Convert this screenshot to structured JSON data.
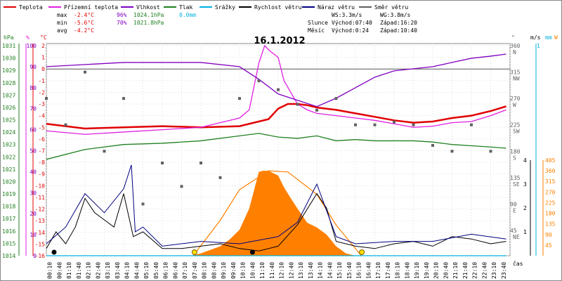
{
  "header": {
    "legend": [
      {
        "label": "Teplota",
        "color": "#e00000"
      },
      {
        "label": "Přízemní teplota",
        "color": "#e020e0"
      },
      {
        "label": "Vlhkost",
        "color": "#8000c0"
      },
      {
        "label": "Tlak",
        "color": "#208020"
      },
      {
        "label": "Srážky",
        "color": "#00b0e0"
      },
      {
        "label": "Rychlost větru",
        "color": "#000000"
      },
      {
        "label": "Náraz větru",
        "color": "#000080"
      },
      {
        "label": "Směr větru",
        "color": "#606060"
      }
    ],
    "stats": {
      "max_label": "max",
      "max_temp": "-2.4°C",
      "max_hum": "96%",
      "max_press": "1024.1hPa",
      "rain": "0.0mm",
      "min_label": "min",
      "min_temp": "-5.6°C",
      "min_hum": "70%",
      "min_press": "1021.8hPa",
      "avg_label": "avg",
      "avg_temp": "-4.2°C"
    },
    "wind": {
      "ws": "WS:3.3m/s",
      "wg": "WG:3.8m/s"
    },
    "sun": {
      "label": "Slunce",
      "rise": "Východ:07:40",
      "set": "Západ:16:20"
    },
    "moon": {
      "label": "Měsíc",
      "rise": "Východ:0:24",
      "set": "Západ:10:40"
    }
  },
  "chart_data": {
    "type": "line",
    "title": "16.1.2012",
    "x_axis_label": "čas",
    "x_ticks": [
      "00:10",
      "00:40",
      "01:10",
      "01:40",
      "02:10",
      "02:40",
      "03:10",
      "03:40",
      "04:10",
      "04:40",
      "05:10",
      "05:40",
      "06:10",
      "06:40",
      "07:10",
      "07:40",
      "08:10",
      "08:40",
      "09:10",
      "09:40",
      "10:10",
      "10:40",
      "11:10",
      "11:40",
      "12:10",
      "12:40",
      "13:10",
      "13:40",
      "14:10",
      "14:40",
      "15:10",
      "15:40",
      "16:10",
      "16:40",
      "17:10",
      "17:40",
      "18:10",
      "18:40",
      "19:10",
      "19:40",
      "20:10",
      "20:40",
      "21:10",
      "21:40",
      "22:10",
      "22:40",
      "23:10",
      "23:40"
    ],
    "axes": {
      "hpa": {
        "label": "hPa",
        "ticks": [
          "1031",
          "1030",
          "1029",
          "1028",
          "1027",
          "1026",
          "1025",
          "1024",
          "1023",
          "1022",
          "1021",
          "1020",
          "1019",
          "1018",
          "1017",
          "1016",
          "1015",
          "1014"
        ]
      },
      "humidity": {
        "label": "%",
        "ticks": [
          "100",
          "90",
          "80",
          "70",
          "60",
          "50",
          "40",
          "30",
          "20",
          "10",
          "0"
        ]
      },
      "temp": {
        "label": "°C",
        "ticks": [
          "2",
          "1",
          "0",
          "-1",
          "-2",
          "-3",
          "-4",
          "-5",
          "-6",
          "-7",
          "-8",
          "-9",
          "-10",
          "-11",
          "-12",
          "-13",
          "-14",
          "-15",
          "-16"
        ]
      },
      "direction": {
        "label": "°",
        "ticks": [
          "360",
          "315",
          "270",
          "225",
          "180",
          "135",
          "90",
          "45"
        ],
        "compass": [
          "N",
          "NW",
          "W",
          "SW",
          "S",
          "SE",
          "E",
          "NE"
        ]
      },
      "wind": {
        "label": "m/s",
        "ticks": [
          "4",
          "3",
          "2",
          "1"
        ]
      },
      "rain": {
        "label": "mm",
        "ticks": [
          "1"
        ]
      },
      "radiation": {
        "label": "W",
        "ticks": [
          "405",
          "360",
          "315",
          "270",
          "225",
          "180",
          "135",
          "90",
          "45"
        ]
      }
    },
    "series": [
      {
        "name": "Teplota",
        "unit": "°C",
        "color": "#e00000",
        "x": [
          0,
          2,
          4,
          6,
          8,
          10,
          11.5,
          12,
          12.5,
          13,
          13.5,
          14,
          14.5,
          15,
          16,
          17,
          18,
          19,
          20,
          21,
          22,
          23,
          23.8
        ],
        "y": [
          -4.7,
          -5.1,
          -5.0,
          -4.9,
          -5.0,
          -4.9,
          -4.3,
          -3.4,
          -3.0,
          -3.0,
          -3.1,
          -3.3,
          -3.4,
          -3.5,
          -3.8,
          -4.1,
          -4.4,
          -4.6,
          -4.5,
          -4.2,
          -4.0,
          -3.6,
          -3.2
        ]
      },
      {
        "name": "Přízemní teplota",
        "unit": "°C",
        "color": "#e020e0",
        "x": [
          0,
          2,
          4,
          6,
          8,
          10,
          10.5,
          11,
          11.3,
          11.6,
          12,
          12.3,
          13,
          13.5,
          14,
          15,
          16,
          17,
          18,
          19,
          20,
          21,
          22,
          23,
          23.8
        ],
        "y": [
          -5.3,
          -5.6,
          -5.4,
          -5.2,
          -5.0,
          -4.2,
          -3.5,
          0.5,
          2.0,
          1.5,
          1.0,
          -1.0,
          -3.0,
          -3.5,
          -3.8,
          -4.0,
          -4.2,
          -4.4,
          -4.7,
          -5.0,
          -4.9,
          -4.6,
          -4.5,
          -4.0,
          -3.5
        ]
      },
      {
        "name": "Vlhkost",
        "unit": "%",
        "color": "#8000c0",
        "x": [
          0,
          2,
          4,
          6,
          8,
          10,
          11,
          12,
          13,
          14,
          15,
          16,
          17,
          18,
          19,
          20,
          21,
          22,
          23,
          23.8
        ],
        "y": [
          90,
          91,
          92,
          92,
          92,
          90,
          84,
          77,
          74,
          71,
          75,
          80,
          85,
          88,
          89,
          90,
          92,
          94,
          95,
          96
        ]
      },
      {
        "name": "Tlak",
        "unit": "hPa",
        "color": "#208020",
        "x": [
          0,
          2,
          4,
          6,
          8,
          10,
          11,
          12,
          13,
          14,
          15,
          16,
          17,
          18,
          19,
          20,
          21,
          22,
          23,
          23.8
        ],
        "y": [
          1021.8,
          1022.6,
          1023.0,
          1023.1,
          1023.3,
          1023.7,
          1023.9,
          1023.6,
          1023.5,
          1023.7,
          1023.3,
          1023.4,
          1023.3,
          1023.3,
          1023.3,
          1023.2,
          1023.0,
          1022.9,
          1022.8,
          1022.7
        ]
      },
      {
        "name": "Rychlost větru",
        "unit": "m/s",
        "color": "#000000",
        "x": [
          0,
          0.5,
          1,
          1.5,
          2,
          2.5,
          3,
          3.5,
          4,
          4.5,
          5,
          6,
          7,
          8,
          9,
          10,
          11,
          12,
          13,
          14,
          14.5,
          15,
          16,
          17,
          18,
          19,
          20,
          21,
          22,
          23,
          23.8
        ],
        "y": [
          0.3,
          1.0,
          0.5,
          1.2,
          2.4,
          1.8,
          1.5,
          1.2,
          2.6,
          0.8,
          1.0,
          0.3,
          0.3,
          0.4,
          0.5,
          0.3,
          0.2,
          0.4,
          1.3,
          2.6,
          2.0,
          0.6,
          0.4,
          0.3,
          0.5,
          0.6,
          0.4,
          0.8,
          0.7,
          0.5,
          0.6
        ]
      },
      {
        "name": "Náraz větru",
        "unit": "m/s",
        "color": "#000080",
        "x": [
          0,
          1,
          2,
          3,
          4,
          4.4,
          4.6,
          5,
          6,
          8,
          10,
          12,
          13,
          14,
          15,
          16,
          18,
          20,
          22,
          23.8
        ],
        "y": [
          0.5,
          1.2,
          2.6,
          1.8,
          2.8,
          3.8,
          1.0,
          1.2,
          0.4,
          0.6,
          0.5,
          0.8,
          1.4,
          3.0,
          0.8,
          0.5,
          0.6,
          0.6,
          0.9,
          0.7
        ]
      },
      {
        "name": "Směr větru",
        "unit": "°",
        "color": "#606060",
        "x": [
          0,
          1,
          2,
          3,
          4,
          5,
          6,
          7,
          8,
          9,
          10,
          11,
          12,
          13,
          14,
          15,
          16,
          17,
          18,
          19,
          20,
          21,
          22,
          23
        ],
        "y": [
          270,
          225,
          315,
          180,
          270,
          90,
          160,
          120,
          160,
          135,
          270,
          300,
          285,
          260,
          250,
          270,
          225,
          225,
          230,
          225,
          190,
          180,
          225,
          180
        ]
      },
      {
        "name": "Srážky",
        "unit": "mm",
        "color": "#00b0e0",
        "x": [
          0,
          23.8
        ],
        "y": [
          0.0,
          0.0
        ]
      }
    ],
    "radiation": {
      "unit": "W",
      "color": "#ff8000",
      "x": [
        7.5,
        8,
        8.5,
        9,
        9.5,
        10,
        10.5,
        11,
        11.2,
        11.5,
        12,
        12.3,
        12.6,
        13,
        13.5,
        14,
        14.5,
        15,
        15.5,
        16
      ],
      "y": [
        0,
        10,
        25,
        40,
        70,
        110,
        200,
        355,
        360,
        360,
        340,
        290,
        250,
        200,
        140,
        120,
        90,
        40,
        10,
        0
      ],
      "theoretical_max": [
        {
          "x": 7.6,
          "y": 0
        },
        {
          "x": 9,
          "y": 150
        },
        {
          "x": 10,
          "y": 280
        },
        {
          "x": 11.5,
          "y": 360
        },
        {
          "x": 12.5,
          "y": 355
        },
        {
          "x": 14,
          "y": 260
        },
        {
          "x": 15,
          "y": 130
        },
        {
          "x": 16.3,
          "y": 0
        }
      ]
    },
    "markers": {
      "sun": [
        7.67,
        16.33
      ],
      "moon": [
        0.4,
        10.67
      ]
    }
  }
}
